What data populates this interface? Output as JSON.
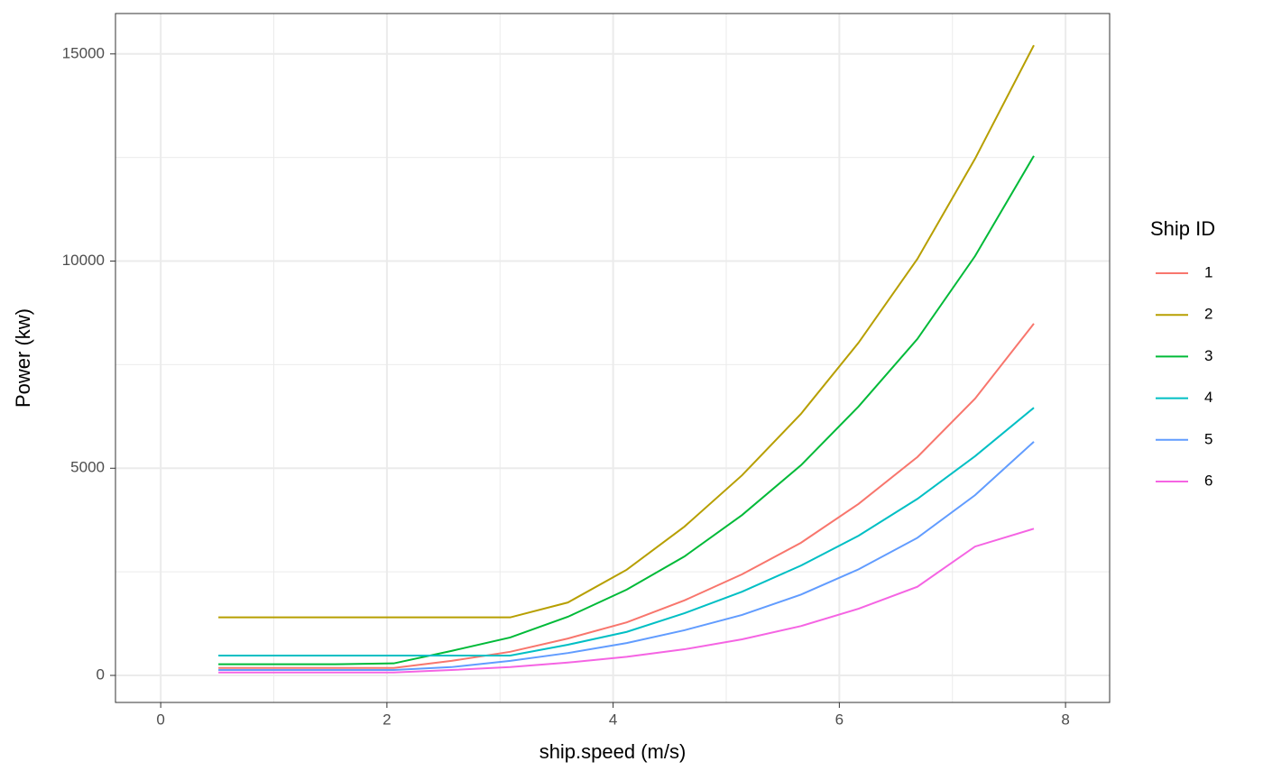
{
  "chart_data": {
    "type": "line",
    "x_label": "ship.speed (m/s)",
    "y_label": "Power (kw)",
    "legend_title": "Ship ID",
    "x": [
      0.51,
      1.03,
      1.54,
      2.06,
      2.57,
      3.09,
      3.6,
      4.12,
      4.63,
      5.14,
      5.66,
      6.17,
      6.69,
      7.2,
      7.72
    ],
    "series": [
      {
        "name": "1",
        "color": "#F8766D",
        "values": [
          180,
          180,
          180,
          180,
          350,
          570,
          890,
          1280,
          1810,
          2440,
          3200,
          4140,
          5270,
          6680,
          8490
        ]
      },
      {
        "name": "2",
        "color": "#B79F00",
        "values": [
          1400,
          1400,
          1400,
          1400,
          1400,
          1400,
          1760,
          2550,
          3590,
          4830,
          6310,
          8030,
          10050,
          12470,
          15210
        ]
      },
      {
        "name": "3",
        "color": "#00BA38",
        "values": [
          270,
          270,
          270,
          290,
          590,
          915,
          1415,
          2070,
          2870,
          3870,
          5070,
          6490,
          8120,
          10120,
          12540
        ]
      },
      {
        "name": "4",
        "color": "#00BFC4",
        "values": [
          480,
          480,
          480,
          480,
          480,
          480,
          740,
          1050,
          1500,
          2020,
          2650,
          3370,
          4260,
          5290,
          6460
        ]
      },
      {
        "name": "5",
        "color": "#619CFF",
        "values": [
          130,
          130,
          130,
          130,
          200,
          350,
          540,
          780,
          1090,
          1460,
          1950,
          2560,
          3320,
          4350,
          5640
        ]
      },
      {
        "name": "6",
        "color": "#F564E3",
        "values": [
          70,
          70,
          70,
          70,
          130,
          200,
          310,
          450,
          630,
          870,
          1190,
          1610,
          2140,
          3110,
          3540
        ]
      }
    ],
    "xlim": [
      -0.4,
      8.39
    ],
    "ylim": [
      -653,
      15975
    ],
    "xticks": [
      0,
      2,
      4,
      6,
      8
    ],
    "yticks": [
      0,
      5000,
      10000,
      15000
    ],
    "x_minor_ticks": [
      1,
      3,
      5,
      7
    ],
    "y_minor_ticks": [
      2500,
      7500,
      12500
    ],
    "grid": true,
    "legend_position": "right"
  }
}
